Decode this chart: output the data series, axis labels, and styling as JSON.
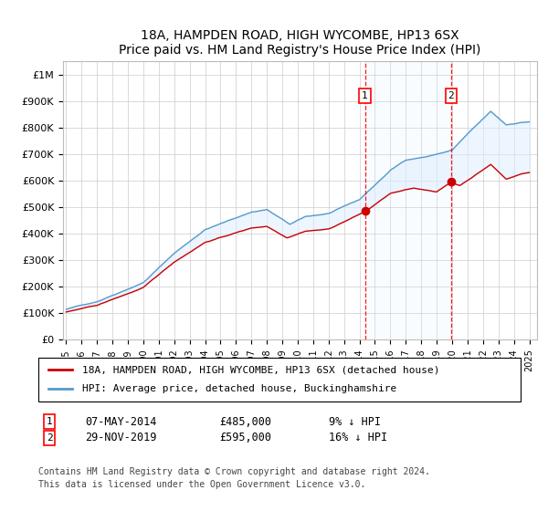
{
  "title": "18A, HAMPDEN ROAD, HIGH WYCOMBE, HP13 6SX",
  "subtitle": "Price paid vs. HM Land Registry's House Price Index (HPI)",
  "legend_line1": "18A, HAMPDEN ROAD, HIGH WYCOMBE, HP13 6SX (detached house)",
  "legend_line2": "HPI: Average price, detached house, Buckinghamshire",
  "footnote1": "Contains HM Land Registry data © Crown copyright and database right 2024.",
  "footnote2": "This data is licensed under the Open Government Licence v3.0.",
  "sale1_date_str": "07-MAY-2014",
  "sale1_price": 485000,
  "sale1_pct": "9%",
  "sale2_date_str": "29-NOV-2019",
  "sale2_price": 595000,
  "sale2_pct": "16%",
  "sale1_year": 2014.35,
  "sale2_year": 2019.92,
  "ylim": [
    0,
    1050000
  ],
  "yticks": [
    0,
    100000,
    200000,
    300000,
    400000,
    500000,
    600000,
    700000,
    800000,
    900000,
    1000000
  ],
  "ytick_labels": [
    "£0",
    "£100K",
    "£200K",
    "£300K",
    "£400K",
    "£500K",
    "£600K",
    "£700K",
    "£800K",
    "£900K",
    "£1M"
  ],
  "hpi_color": "#5599cc",
  "price_color": "#cc0000",
  "fill_color": "#ddeeff",
  "bg_color": "#ffffff",
  "grid_color": "#cccccc"
}
